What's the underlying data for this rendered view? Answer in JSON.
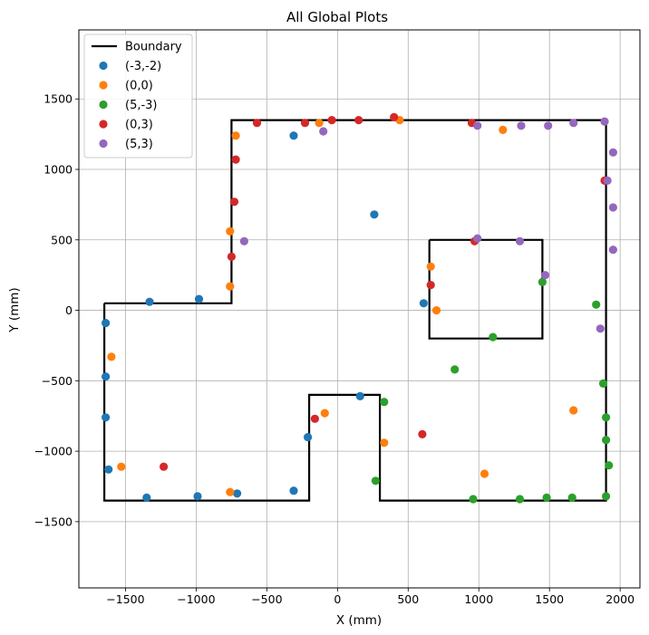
{
  "chart_data": {
    "type": "scatter",
    "title": "All Global Plots",
    "xlabel": "X (mm)",
    "ylabel": "Y (mm)",
    "xlim": [
      -1830,
      2140
    ],
    "ylim": [
      -1970,
      1990
    ],
    "xticks": [
      -1500,
      -1000,
      -500,
      0,
      500,
      1000,
      1500,
      2000
    ],
    "yticks": [
      -1500,
      -1000,
      -500,
      0,
      500,
      1000,
      1500
    ],
    "xtick_labels": [
      "−1500",
      "−1000",
      "−500",
      "0",
      "500",
      "1000",
      "1500",
      "2000"
    ],
    "ytick_labels": [
      "−1500",
      "−1000",
      "−500",
      "0",
      "500",
      "1000",
      "1500"
    ],
    "grid": true,
    "legend_position": "top-left",
    "boundary": {
      "name": "Boundary",
      "color": "#000000",
      "outer": [
        [
          -1650,
          50
        ],
        [
          -750,
          50
        ],
        [
          -750,
          1350
        ],
        [
          1900,
          1350
        ],
        [
          1900,
          -1350
        ],
        [
          300,
          -1350
        ],
        [
          300,
          -600
        ],
        [
          -200,
          -600
        ],
        [
          -200,
          -1350
        ],
        [
          -1650,
          -1350
        ],
        [
          -1650,
          50
        ]
      ],
      "inner": [
        [
          650,
          500
        ],
        [
          1450,
          500
        ],
        [
          1450,
          -200
        ],
        [
          650,
          -200
        ],
        [
          650,
          500
        ]
      ]
    },
    "series": [
      {
        "name": "(-3,-2)",
        "color": "#1f77b4",
        "points": [
          [
            -1640,
            -90
          ],
          [
            -1640,
            -470
          ],
          [
            -1640,
            -760
          ],
          [
            -1620,
            -1130
          ],
          [
            -1350,
            -1330
          ],
          [
            -990,
            -1320
          ],
          [
            -710,
            -1300
          ],
          [
            -310,
            -1280
          ],
          [
            -210,
            -900
          ],
          [
            160,
            -610
          ],
          [
            610,
            50
          ],
          [
            260,
            680
          ],
          [
            -310,
            1240
          ],
          [
            -980,
            80
          ],
          [
            -1330,
            60
          ]
        ]
      },
      {
        "name": "(0,0)",
        "color": "#ff7f0e",
        "points": [
          [
            -1600,
            -330
          ],
          [
            -1530,
            -1110
          ],
          [
            -760,
            -1290
          ],
          [
            -90,
            -730
          ],
          [
            330,
            -940
          ],
          [
            700,
            0
          ],
          [
            660,
            310
          ],
          [
            1040,
            -1160
          ],
          [
            1670,
            -710
          ],
          [
            1170,
            1280
          ],
          [
            440,
            1350
          ],
          [
            -130,
            1330
          ],
          [
            -720,
            1240
          ],
          [
            -760,
            560
          ],
          [
            -760,
            170
          ]
        ]
      },
      {
        "name": "(5,-3)",
        "color": "#2ca02c",
        "points": [
          [
            1450,
            200
          ],
          [
            1100,
            -190
          ],
          [
            830,
            -420
          ],
          [
            330,
            -650
          ],
          [
            270,
            -1210
          ],
          [
            960,
            -1340
          ],
          [
            1290,
            -1340
          ],
          [
            1480,
            -1330
          ],
          [
            1660,
            -1330
          ],
          [
            1900,
            -1320
          ],
          [
            1920,
            -1100
          ],
          [
            1900,
            -920
          ],
          [
            1900,
            -760
          ],
          [
            1880,
            -520
          ],
          [
            1830,
            40
          ]
        ]
      },
      {
        "name": "(0,3)",
        "color": "#d62728",
        "points": [
          [
            -1230,
            -1110
          ],
          [
            -160,
            -770
          ],
          [
            600,
            -880
          ],
          [
            660,
            180
          ],
          [
            970,
            490
          ],
          [
            950,
            1330
          ],
          [
            400,
            1370
          ],
          [
            150,
            1350
          ],
          [
            -40,
            1350
          ],
          [
            -230,
            1330
          ],
          [
            -570,
            1330
          ],
          [
            -720,
            1070
          ],
          [
            -730,
            770
          ],
          [
            -750,
            380
          ],
          [
            1890,
            920
          ]
        ]
      },
      {
        "name": "(5,3)",
        "color": "#9467bd",
        "points": [
          [
            -660,
            490
          ],
          [
            -100,
            1270
          ],
          [
            990,
            1310
          ],
          [
            1300,
            1310
          ],
          [
            1490,
            1310
          ],
          [
            1670,
            1330
          ],
          [
            1890,
            1340
          ],
          [
            1950,
            1120
          ],
          [
            1910,
            920
          ],
          [
            1950,
            730
          ],
          [
            1950,
            430
          ],
          [
            1470,
            250
          ],
          [
            1860,
            -130
          ],
          [
            1290,
            490
          ],
          [
            990,
            510
          ]
        ]
      }
    ]
  }
}
